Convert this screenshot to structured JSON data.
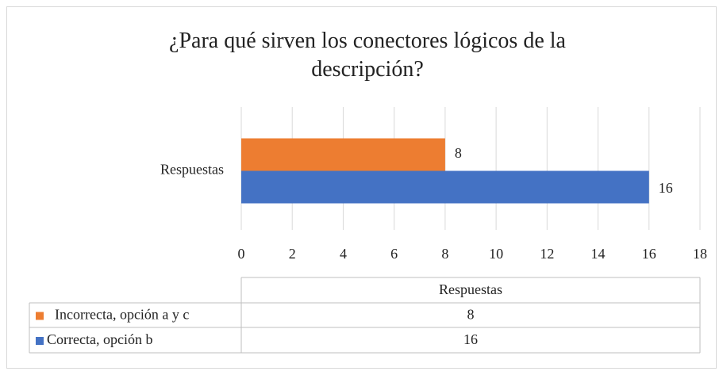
{
  "chart_data": {
    "type": "bar",
    "orientation": "horizontal",
    "title": "¿Para qué sirven los conectores lógicos de la descripción?",
    "categories": [
      "Respuestas"
    ],
    "series": [
      {
        "name": "Incorrecta, opción a y c",
        "color": "#ed7d31",
        "values": [
          8
        ]
      },
      {
        "name": "Correcta, opción b",
        "color": "#4472c4",
        "values": [
          16
        ]
      }
    ],
    "xlim": [
      0,
      18
    ],
    "xticks": [
      0,
      2,
      4,
      6,
      8,
      10,
      12,
      14,
      16,
      18
    ],
    "grid": true,
    "data_table": true
  }
}
